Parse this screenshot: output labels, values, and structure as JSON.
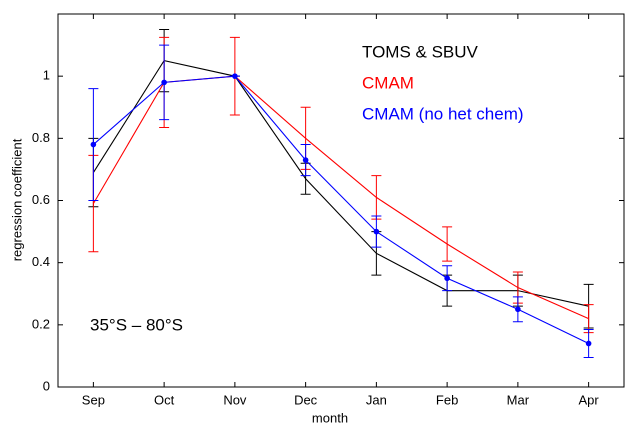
{
  "chart_data": {
    "type": "line",
    "xlabel": "month",
    "ylabel": "regression coefficient",
    "annotation": "35°S – 80°S",
    "categories": [
      "Sep",
      "Oct",
      "Nov",
      "Dec",
      "Jan",
      "Feb",
      "Mar",
      "Apr"
    ],
    "series": [
      {
        "name": "TOMS & SBUV",
        "color": "#000000",
        "values": [
          0.69,
          1.05,
          1.0,
          0.67,
          0.43,
          0.31,
          0.31,
          0.26
        ],
        "errors": [
          0.11,
          0.1,
          0,
          0.05,
          0.07,
          0.05,
          0.05,
          0.07
        ]
      },
      {
        "name": "CMAM",
        "color": "#ff0000",
        "values": [
          0.59,
          0.98,
          1.0,
          0.8,
          0.61,
          0.46,
          0.32,
          0.22
        ],
        "errors": [
          0.155,
          0.145,
          0.125,
          0.1,
          0.07,
          0.055,
          0.05,
          0.045
        ]
      },
      {
        "name": "CMAM (no het chem)",
        "color": "#0000ff",
        "values": [
          0.78,
          0.98,
          1.0,
          0.73,
          0.5,
          0.35,
          0.25,
          0.14
        ],
        "errors": [
          0.18,
          0.12,
          0,
          0.05,
          0.05,
          0.04,
          0.04,
          0.045
        ],
        "marker": "circle"
      }
    ],
    "ylim": [
      0,
      1.2
    ],
    "yticks": [
      0,
      0.2,
      0.4,
      0.6,
      0.8,
      1
    ],
    "grid": false
  }
}
